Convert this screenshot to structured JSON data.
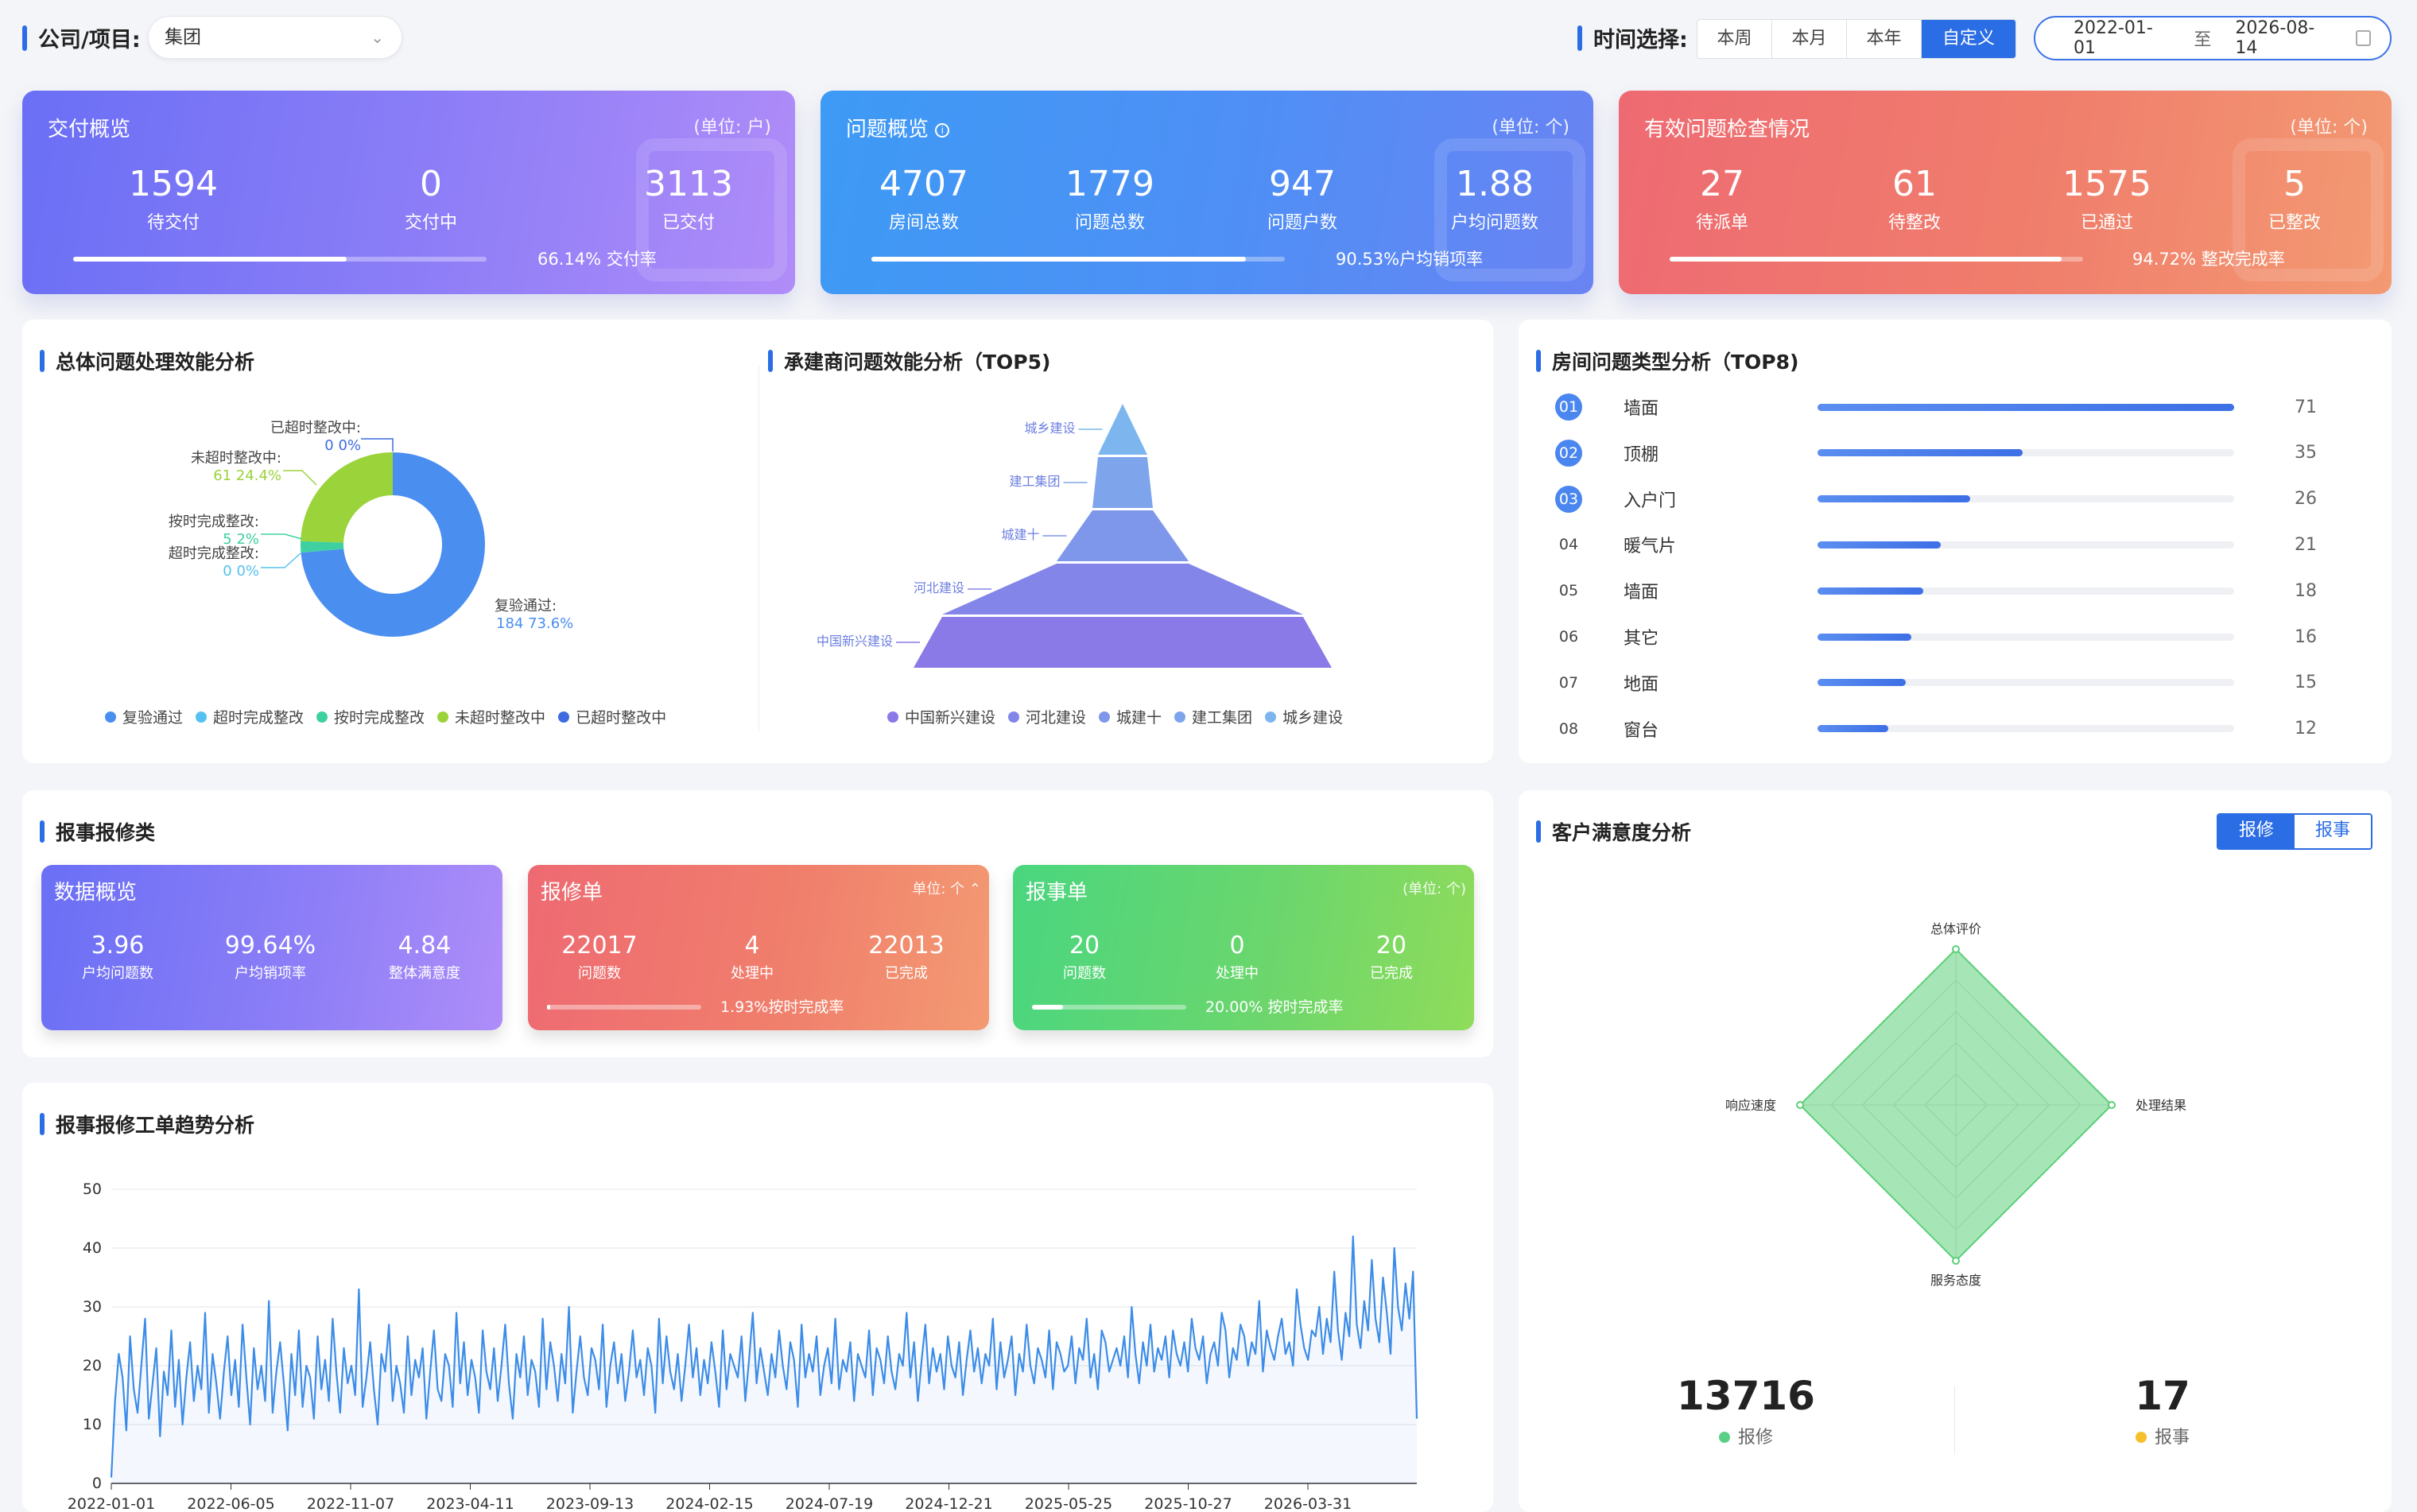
{
  "header": {
    "company_label": "公司/项目:",
    "company_value": "集团",
    "time_label": "时间选择:",
    "time_tabs": [
      {
        "label": "本周",
        "active": false
      },
      {
        "label": "本月",
        "active": false
      },
      {
        "label": "本年",
        "active": false
      },
      {
        "label": "自定义",
        "active": true
      }
    ],
    "date_start": "2022-01-01",
    "date_sep": "至",
    "date_end": "2026-08-14"
  },
  "delivery": {
    "title": "交付概览",
    "unit": "(单位: 户)",
    "stats": [
      {
        "value": "1594",
        "label": "待交付"
      },
      {
        "value": "0",
        "label": "交付中"
      },
      {
        "value": "3113",
        "label": "已交付"
      }
    ],
    "rate_text": "66.14% 交付率",
    "progress": 0.6614
  },
  "issues": {
    "title": "问题概览",
    "unit": "(单位: 个)",
    "stats": [
      {
        "value": "4707",
        "label": "房间总数"
      },
      {
        "value": "1779",
        "label": "问题总数"
      },
      {
        "value": "947",
        "label": "问题户数"
      },
      {
        "value": "1.88",
        "label": "户均问题数"
      }
    ],
    "rate_text": "90.53%户均销项率",
    "progress": 0.9053
  },
  "inspection": {
    "title": "有效问题检查情况",
    "unit": "(单位: 个)",
    "stats": [
      {
        "value": "27",
        "label": "待派单"
      },
      {
        "value": "61",
        "label": "待整改"
      },
      {
        "value": "1575",
        "label": "已通过"
      },
      {
        "value": "5",
        "label": "已整改"
      }
    ],
    "rate_text": "94.72% 整改完成率",
    "progress": 0.9472
  },
  "efficiency": {
    "title": "总体问题处理效能分析",
    "slices": [
      {
        "name": "复验通过",
        "label": "复验通过:",
        "value": 184,
        "pct": "73.6%",
        "color": "#4a8ef0"
      },
      {
        "name": "超时完成整改",
        "label": "超时完成整改:",
        "value": 0,
        "pct": "0%",
        "color": "#56c1f0"
      },
      {
        "name": "按时完成整改",
        "label": "按时完成整改:",
        "value": 5,
        "pct": "2%",
        "color": "#3ed0a0"
      },
      {
        "name": "未超时整改中",
        "label": "未超时整改中:",
        "value": 61,
        "pct": "24.4%",
        "color": "#9ad33a"
      },
      {
        "name": "已超时整改中",
        "label": "已超时整改中:",
        "value": 0,
        "pct": "0%",
        "color": "#3d6be0"
      }
    ]
  },
  "contractor": {
    "title": "承建商问题效能分析（TOP5)",
    "levels": [
      {
        "name": "城乡建设",
        "color": "#7db6ee"
      },
      {
        "name": "建工集团",
        "color": "#7ea5ec"
      },
      {
        "name": "城建十",
        "color": "#7f97ea"
      },
      {
        "name": "河北建设",
        "color": "#8386e8"
      },
      {
        "name": "中国新兴建设",
        "color": "#8a7ae8"
      }
    ],
    "legend": [
      "中国新兴建设",
      "河北建设",
      "城建十",
      "建工集团",
      "城乡建设"
    ],
    "legend_colors": [
      "#8a7ae8",
      "#8386e8",
      "#7f97ea",
      "#7ea5ec",
      "#7db6ee"
    ]
  },
  "room_types": {
    "title": "房间问题类型分析（TOP8)",
    "max": 71,
    "items": [
      {
        "rank": "01",
        "name": "墙面",
        "value": 71
      },
      {
        "rank": "02",
        "name": "顶棚",
        "value": 35
      },
      {
        "rank": "03",
        "name": "入户门",
        "value": 26
      },
      {
        "rank": "04",
        "name": "暖气片",
        "value": 21
      },
      {
        "rank": "05",
        "name": "墙面",
        "value": 18
      },
      {
        "rank": "06",
        "name": "其它",
        "value": 16
      },
      {
        "rank": "07",
        "name": "地面",
        "value": 15
      },
      {
        "rank": "08",
        "name": "窗台",
        "value": 12
      }
    ]
  },
  "report": {
    "title": "报事报修类",
    "overview": {
      "title": "数据概览",
      "stats": [
        {
          "value": "3.96",
          "label": "户均问题数"
        },
        {
          "value": "99.64%",
          "label": "户均销项率"
        },
        {
          "value": "4.84",
          "label": "整体满意度"
        }
      ]
    },
    "repair": {
      "title": "报修单",
      "unit": "单位: 个",
      "stats": [
        {
          "value": "22017",
          "label": "问题数"
        },
        {
          "value": "4",
          "label": "处理中"
        },
        {
          "value": "22013",
          "label": "已完成"
        }
      ],
      "rate_text": "1.93%按时完成率",
      "progress": 0.0193
    },
    "incident": {
      "title": "报事单",
      "unit": "(单位: 个)",
      "stats": [
        {
          "value": "20",
          "label": "问题数"
        },
        {
          "value": "0",
          "label": "处理中"
        },
        {
          "value": "20",
          "label": "已完成"
        }
      ],
      "rate_text": "20.00% 按时完成率",
      "progress": 0.2
    }
  },
  "satisfaction": {
    "title": "客户满意度分析",
    "tabs": [
      {
        "label": "报修",
        "active": true
      },
      {
        "label": "报事",
        "active": false
      }
    ],
    "axes": [
      "总体评价",
      "处理结果",
      "服务态度",
      "响应速度"
    ],
    "values": [
      5,
      5,
      5,
      5
    ],
    "max": 5,
    "totals": [
      {
        "value": "13716",
        "label": "报修",
        "color": "#5ccf86"
      },
      {
        "value": "17",
        "label": "报事",
        "color": "#f5c02c"
      }
    ]
  },
  "trend": {
    "title": "报事报修工单趋势分析"
  },
  "chart_data": {
    "type": "line",
    "title": "报事报修工单趋势分析",
    "xlabel": "",
    "ylabel": "",
    "ylim": [
      0,
      50
    ],
    "yticks": [
      0,
      10,
      20,
      30,
      40,
      50
    ],
    "x_tick_labels": [
      "2022-01-01",
      "2022-06-05",
      "2022-11-07",
      "2023-04-11",
      "2023-09-13",
      "2024-02-15",
      "2024-07-19",
      "2024-12-21",
      "2025-05-25",
      "2025-10-27",
      "2026-03-31"
    ],
    "x_start": "2022-01-01",
    "x_end": "2026-08-14",
    "series": [
      {
        "color": "#3c8ce8",
        "values": [
          1,
          14,
          22,
          18,
          9,
          25,
          16,
          12,
          20,
          28,
          11,
          17,
          23,
          8,
          19,
          15,
          26,
          13,
          21,
          10,
          18,
          24,
          14,
          20,
          16,
          29,
          12,
          22,
          17,
          11,
          19,
          25,
          15,
          21,
          13,
          27,
          18,
          10,
          23,
          16,
          20,
          14,
          31,
          12,
          19,
          24,
          17,
          9,
          22,
          15,
          26,
          13,
          20,
          18,
          11,
          25,
          16,
          21,
          14,
          28,
          19,
          12,
          23,
          17,
          20,
          15,
          33,
          13,
          18,
          24,
          16,
          10,
          22,
          19,
          27,
          14,
          20,
          17,
          12,
          25,
          15,
          21,
          18,
          23,
          11,
          19,
          26,
          16,
          14,
          22,
          20,
          13,
          29,
          17,
          24,
          15,
          21,
          18,
          12,
          26,
          19,
          16,
          23,
          14,
          20,
          27,
          17,
          11,
          22,
          18,
          25,
          15,
          21,
          19,
          13,
          28,
          16,
          24,
          20,
          14,
          22,
          17,
          30,
          12,
          19,
          25,
          18,
          15,
          23,
          21,
          16,
          27,
          13,
          20,
          24,
          17,
          22,
          14,
          19,
          26,
          18,
          21,
          15,
          23,
          20,
          12,
          28,
          17,
          25,
          19,
          16,
          22,
          14,
          20,
          27,
          18,
          23,
          15,
          21,
          17,
          24,
          19,
          13,
          26,
          16,
          22,
          20,
          18,
          25,
          14,
          21,
          29,
          17,
          23,
          19,
          15,
          22,
          18,
          26,
          20,
          16,
          24,
          21,
          13,
          27,
          18,
          22,
          19,
          25,
          15,
          20,
          23,
          17,
          28,
          16,
          21,
          19,
          24,
          14,
          22,
          20,
          18,
          26,
          15,
          23,
          21,
          17,
          25,
          19,
          16,
          22,
          20,
          29,
          18,
          24,
          14,
          21,
          27,
          17,
          23,
          19,
          22,
          16,
          25,
          20,
          18,
          24,
          15,
          21,
          26,
          19,
          23,
          17,
          22,
          20,
          28,
          16,
          24,
          18,
          21,
          25,
          15,
          22,
          19,
          27,
          20,
          17,
          23,
          21,
          18,
          26,
          16,
          24,
          22,
          19,
          20,
          25,
          17,
          23,
          21,
          28,
          18,
          22,
          16,
          26,
          24,
          19,
          21,
          23,
          20,
          25,
          18,
          30,
          22,
          17,
          24,
          20,
          27,
          19,
          23,
          21,
          25,
          18,
          26,
          22,
          20,
          24,
          19,
          28,
          23,
          21,
          25,
          17,
          22,
          24,
          20,
          29,
          26,
          18,
          23,
          21,
          27,
          25,
          20,
          24,
          22,
          31,
          19,
          26,
          23,
          21,
          25,
          28,
          22,
          24,
          20,
          33,
          27,
          23,
          21,
          26,
          25,
          30,
          22,
          28,
          24,
          36,
          26,
          21,
          29,
          25,
          42,
          27,
          23,
          31,
          26,
          38,
          28,
          24,
          35,
          29,
          22,
          40,
          30,
          26,
          34,
          28,
          36,
          11
        ]
      }
    ]
  }
}
